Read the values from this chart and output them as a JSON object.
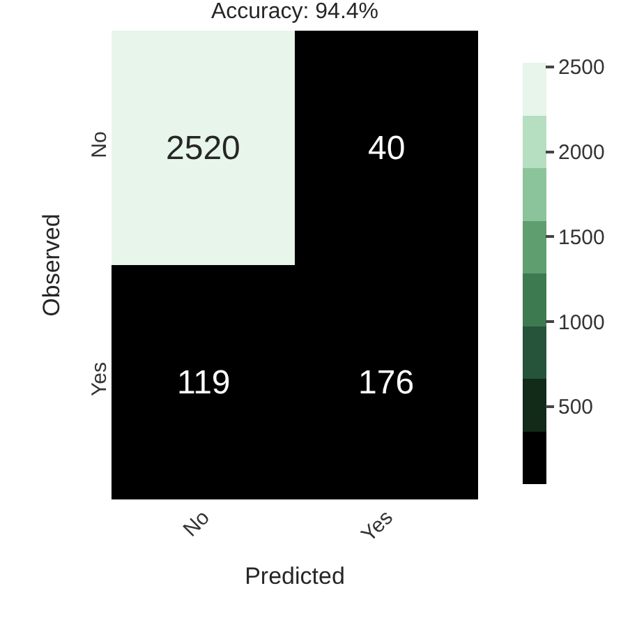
{
  "chart_data": {
    "type": "heatmap",
    "title": "Accuracy: 94.4%",
    "xlabel": "Predicted",
    "ylabel": "Observed",
    "categories": [
      "No",
      "Yes"
    ],
    "y_categories": [
      "No",
      "Yes"
    ],
    "cells": [
      [
        2520,
        40
      ],
      [
        119,
        176
      ]
    ],
    "clim": [
      40,
      2520
    ],
    "cticks": [
      500,
      1000,
      1500,
      2000,
      2500
    ],
    "data_labels": true
  }
}
